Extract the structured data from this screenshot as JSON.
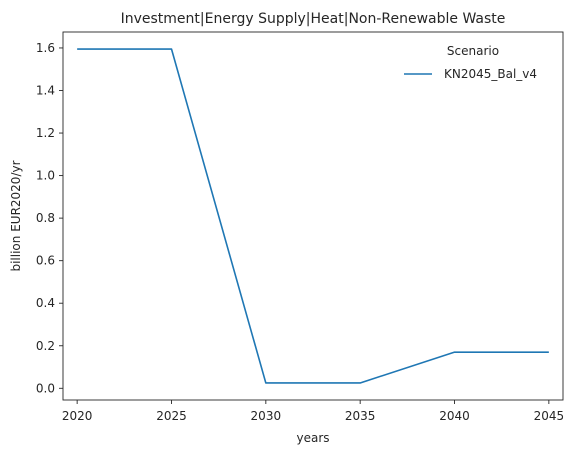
{
  "chart_data": {
    "type": "line",
    "title": "Investment|Energy Supply|Heat|Non-Renewable Waste",
    "xlabel": "years",
    "ylabel": "billion EUR2020/yr",
    "x": [
      2020,
      2025,
      2030,
      2035,
      2040,
      2045
    ],
    "xticks": [
      "2020",
      "2025",
      "2030",
      "2035",
      "2040",
      "2045"
    ],
    "yticks": [
      "0.0",
      "0.2",
      "0.4",
      "0.6",
      "0.8",
      "1.0",
      "1.2",
      "1.4",
      "1.6"
    ],
    "xlim": [
      2019.25,
      2045.75
    ],
    "ylim": [
      -0.055,
      1.675
    ],
    "grid": false,
    "legend": {
      "title": "Scenario",
      "placement": "top-right"
    },
    "series": [
      {
        "name": "KN2045_Bal_v4",
        "color": "#1f77b4",
        "values": [
          1.595,
          1.595,
          0.025,
          0.025,
          0.17,
          0.17
        ]
      }
    ]
  }
}
